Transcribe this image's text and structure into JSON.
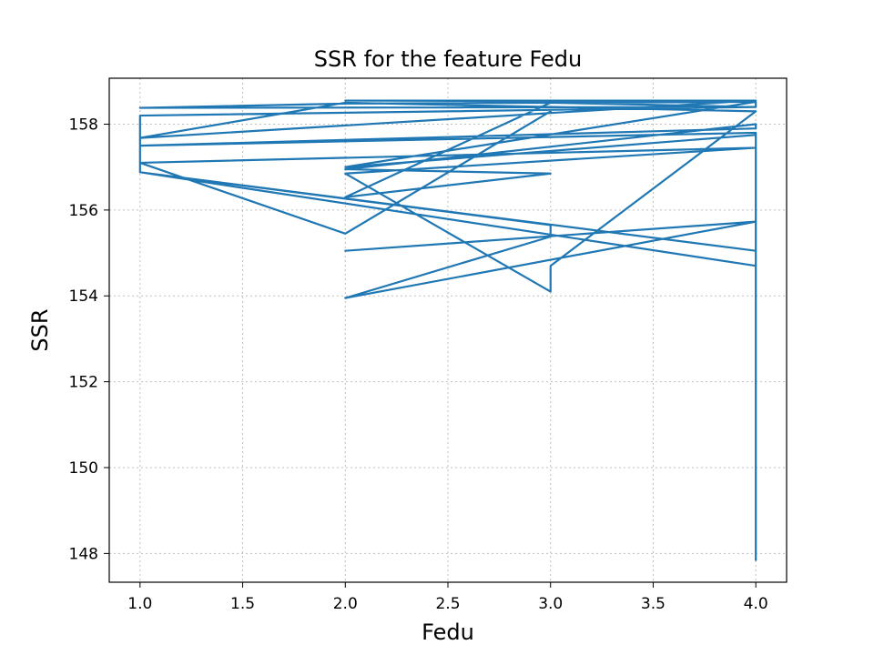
{
  "chart_data": {
    "type": "line",
    "title": "SSR for the feature Fedu",
    "xlabel": "Fedu",
    "ylabel": "SSR",
    "xlim": [
      0.85,
      4.15
    ],
    "ylim": [
      147.33,
      159.07
    ],
    "xticks": [
      1.0,
      1.5,
      2.0,
      2.5,
      3.0,
      3.5,
      4.0
    ],
    "xtick_labels": [
      "1.0",
      "1.5",
      "2.0",
      "2.5",
      "3.0",
      "3.5",
      "4.0"
    ],
    "yticks": [
      148,
      150,
      152,
      154,
      156,
      158
    ],
    "ytick_labels": [
      "148",
      "150",
      "152",
      "154",
      "156",
      "158"
    ],
    "grid": true,
    "color": "#1f77b4",
    "series": [
      {
        "x": [
          4.0,
          4.0,
          4.0,
          2.0,
          2.0,
          4.0,
          4.0,
          1.0,
          1.0,
          3.0,
          3.0,
          2.0,
          2.0,
          4.0,
          4.0,
          1.0,
          1.0,
          4.0,
          4.0,
          2.0,
          2.0,
          4.0,
          4.0,
          1.0,
          1.0,
          4.0,
          4.0,
          2.0,
          2.0,
          3.0,
          3.0,
          2.0,
          2.0,
          3.0,
          3.0,
          4.0,
          4.0,
          1.0,
          1.0,
          2.0,
          2.0,
          4.0,
          4.0,
          2.0,
          2.0,
          4.0,
          4.0,
          1.0,
          1.0,
          2.0,
          2.0,
          4.0,
          4.0,
          3.0,
          3.0,
          2.0,
          2.0,
          4.0,
          4.0,
          1.0,
          1.0,
          2.0,
          2.0,
          3.0
        ],
        "y": [
          147.85,
          157.75,
          155.73,
          155.05,
          155.05,
          155.73,
          154.7,
          156.88,
          156.88,
          155.65,
          155.38,
          153.95,
          153.95,
          155.73,
          155.05,
          156.88,
          158.2,
          158.4,
          158.52,
          157.0,
          157.0,
          157.75,
          157.8,
          157.5,
          157.5,
          157.9,
          158.0,
          156.95,
          156.95,
          156.85,
          156.85,
          156.3,
          156.3,
          158.5,
          158.5,
          158.4,
          158.4,
          158.38,
          158.38,
          158.48,
          158.48,
          158.52,
          158.52,
          158.55,
          158.55,
          158.55,
          158.55,
          157.68,
          157.68,
          158.5,
          158.5,
          158.3,
          158.3,
          154.7,
          154.1,
          156.85,
          156.85,
          157.45,
          157.45,
          157.1,
          157.1,
          155.45,
          155.45,
          158.3
        ]
      }
    ]
  }
}
